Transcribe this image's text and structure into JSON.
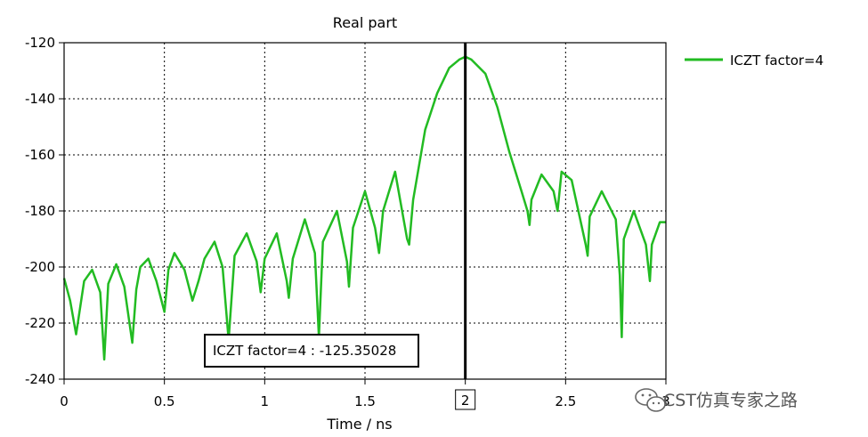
{
  "chart_data": {
    "type": "line",
    "title": "Real part",
    "xlabel": "Time / ns",
    "ylabel": "",
    "xlim": [
      0,
      3
    ],
    "ylim": [
      -240,
      -120
    ],
    "grid": true,
    "legend_position": "right",
    "x_ticks": [
      "0",
      "0.5",
      "1",
      "1.5",
      "2",
      "2.5",
      "3"
    ],
    "y_ticks": [
      "-120",
      "-140",
      "-160",
      "-180",
      "-200",
      "-220",
      "-240"
    ],
    "series_color": "#22bb22",
    "series": [
      {
        "name": "ICZT factor=4",
        "x": [
          0,
          0.03,
          0.06,
          0.1,
          0.14,
          0.18,
          0.2,
          0.22,
          0.26,
          0.3,
          0.34,
          0.36,
          0.38,
          0.42,
          0.46,
          0.5,
          0.52,
          0.55,
          0.6,
          0.64,
          0.67,
          0.7,
          0.75,
          0.79,
          0.82,
          0.85,
          0.91,
          0.96,
          0.98,
          1.0,
          1.06,
          1.11,
          1.12,
          1.14,
          1.2,
          1.25,
          1.27,
          1.29,
          1.36,
          1.41,
          1.42,
          1.44,
          1.5,
          1.55,
          1.57,
          1.59,
          1.65,
          1.71,
          1.72,
          1.74,
          1.8,
          1.86,
          1.92,
          1.97,
          2.0,
          2.03,
          2.1,
          2.16,
          2.22,
          2.28,
          2.31,
          2.32,
          2.33,
          2.38,
          2.44,
          2.46,
          2.48,
          2.53,
          2.6,
          2.61,
          2.62,
          2.68,
          2.75,
          2.77,
          2.78,
          2.79,
          2.84,
          2.9,
          2.92,
          2.93,
          2.97,
          3.0
        ],
        "values": [
          -204,
          -212,
          -224,
          -205,
          -201,
          -209,
          -233,
          -206,
          -199,
          -207,
          -227,
          -208,
          -200,
          -197,
          -205,
          -216,
          -201,
          -195,
          -201,
          -212,
          -205,
          -197,
          -191,
          -200,
          -226,
          -196,
          -188,
          -198,
          -209,
          -197,
          -188,
          -205,
          -211,
          -197,
          -183,
          -195,
          -225,
          -191,
          -180,
          -198,
          -207,
          -186,
          -173,
          -186,
          -195,
          -180,
          -166,
          -190,
          -192,
          -176,
          -151,
          -138,
          -129,
          -126,
          -125,
          -126,
          -131,
          -143,
          -159,
          -173,
          -180,
          -185,
          -176,
          -167,
          -173,
          -180,
          -166,
          -169,
          -192,
          -196,
          -182,
          -173,
          -183,
          -203,
          -225,
          -190,
          -180,
          -192,
          -205,
          -192,
          -184,
          -184
        ]
      }
    ],
    "cursor": {
      "x": 2,
      "label": "2"
    },
    "annotation": "ICZT factor=4 : -125.35028",
    "watermark": "CST仿真专家之路"
  }
}
